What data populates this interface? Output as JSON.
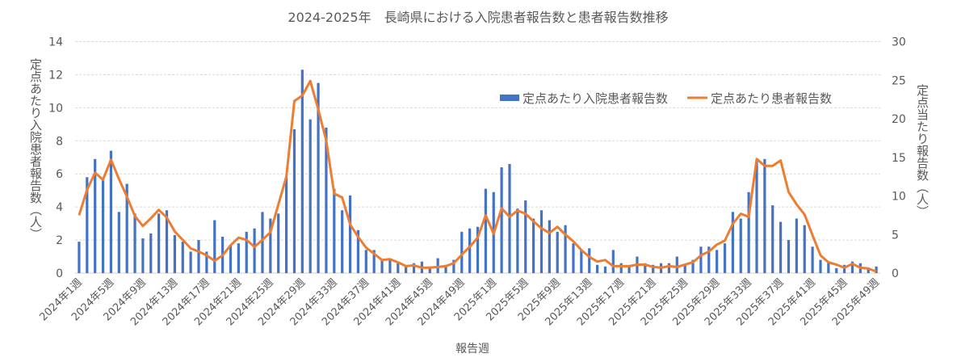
{
  "chart_data": {
    "type": "bar+line",
    "title": "2024-2025年　長崎県における入院患者報告数と患者報告数推移",
    "xlabel": "報告週",
    "ylabel_left": "定点あたり入院患者報告数（人）",
    "ylabel_right": "定点当たり報告数（人）",
    "ylim_left": [
      0,
      14
    ],
    "yticks_left": [
      0,
      2,
      4,
      6,
      8,
      10,
      12,
      14
    ],
    "ylim_right": [
      0,
      30
    ],
    "yticks_right": [
      0,
      5,
      10,
      15,
      20,
      25,
      30
    ],
    "grid": true,
    "legend_position": "top-right",
    "categories": [
      "2024年1週",
      "2024年2週",
      "2024年3週",
      "2024年4週",
      "2024年5週",
      "2024年6週",
      "2024年7週",
      "2024年8週",
      "2024年9週",
      "2024年10週",
      "2024年11週",
      "2024年12週",
      "2024年13週",
      "2024年14週",
      "2024年15週",
      "2024年16週",
      "2024年17週",
      "2024年18週",
      "2024年19週",
      "2024年20週",
      "2024年21週",
      "2024年22週",
      "2024年23週",
      "2024年24週",
      "2024年25週",
      "2024年26週",
      "2024年27週",
      "2024年28週",
      "2024年29週",
      "2024年30週",
      "2024年31週",
      "2024年32週",
      "2024年33週",
      "2024年34週",
      "2024年35週",
      "2024年36週",
      "2024年37週",
      "2024年38週",
      "2024年39週",
      "2024年40週",
      "2024年41週",
      "2024年42週",
      "2024年43週",
      "2024年44週",
      "2024年45週",
      "2024年46週",
      "2024年47週",
      "2024年48週",
      "2024年49週",
      "2024年50週",
      "2024年51週",
      "2024年52週",
      "2025年1週",
      "2025年2週",
      "2025年3週",
      "2025年4週",
      "2025年5週",
      "2025年6週",
      "2025年7週",
      "2025年8週",
      "2025年9週",
      "2025年10週",
      "2025年11週",
      "2025年12週",
      "2025年13週",
      "2025年14週",
      "2025年15週",
      "2025年16週",
      "2025年17週",
      "2025年18週",
      "2025年19週",
      "2025年20週",
      "2025年21週",
      "2025年22週",
      "2025年23週",
      "2025年24週",
      "2025年25週",
      "2025年26週",
      "2025年27週",
      "2025年28週",
      "2025年29週",
      "2025年30週",
      "2025年31週",
      "2025年32週",
      "2025年33週",
      "2025年34週",
      "2025年35週",
      "2025年36週",
      "2025年37週",
      "2025年38週",
      "2025年39週",
      "2025年40週",
      "2025年41週",
      "2025年42週",
      "2025年43週",
      "2025年44週",
      "2025年45週",
      "2025年46週",
      "2025年47週",
      "2025年48週",
      "2025年49週"
    ],
    "tick_label_every": 4,
    "series": [
      {
        "name": "定点あたり入院患者報告数",
        "type": "bar",
        "axis": "left",
        "color": "#4472C4",
        "values": [
          1.9,
          5.8,
          6.9,
          5.6,
          7.4,
          3.7,
          5.4,
          3.6,
          2.1,
          2.4,
          3.6,
          3.8,
          2.3,
          1.9,
          1.3,
          2.0,
          1.3,
          3.2,
          2.2,
          1.7,
          1.8,
          2.5,
          2.7,
          3.7,
          3.3,
          3.6,
          5.8,
          8.7,
          12.3,
          9.3,
          11.5,
          8.8,
          5.1,
          3.8,
          4.7,
          2.6,
          1.4,
          1.4,
          0.8,
          0.8,
          0.6,
          0.4,
          0.6,
          0.7,
          0.4,
          0.9,
          0.5,
          0.8,
          2.5,
          2.7,
          2.8,
          5.1,
          4.9,
          6.4,
          6.6,
          3.9,
          4.4,
          3.3,
          3.8,
          3.2,
          2.5,
          2.9,
          1.8,
          1.4,
          1.5,
          0.5,
          0.4,
          1.4,
          0.6,
          0.4,
          1.0,
          0.6,
          0.5,
          0.6,
          0.6,
          1.0,
          0.5,
          0.8,
          1.6,
          1.6,
          1.4,
          1.8,
          3.7,
          3.3,
          4.9,
          6.8,
          6.9,
          4.1,
          3.1,
          2.0,
          3.3,
          2.9,
          1.6,
          0.8,
          0.7,
          0.3,
          0.5,
          0.7,
          0.6,
          0.3,
          0.4
        ]
      },
      {
        "name": "定点あたり患者報告数",
        "type": "line",
        "axis": "right",
        "color": "#ED7D31",
        "values": [
          7.5,
          10.8,
          13.0,
          12.1,
          14.7,
          12.2,
          9.9,
          7.4,
          6.1,
          7.1,
          8.2,
          7.2,
          5.4,
          4.3,
          3.2,
          2.8,
          2.3,
          1.6,
          2.3,
          3.6,
          4.6,
          4.3,
          3.4,
          4.3,
          5.3,
          8.9,
          12.5,
          22.3,
          23.0,
          24.9,
          21.2,
          17.2,
          10.3,
          9.8,
          6.3,
          4.7,
          3.3,
          2.5,
          1.7,
          1.8,
          1.4,
          0.9,
          1.0,
          0.7,
          0.7,
          0.8,
          0.9,
          1.3,
          2.4,
          3.4,
          4.6,
          7.5,
          5.1,
          8.4,
          7.3,
          8.1,
          7.7,
          6.7,
          5.8,
          5.2,
          6.0,
          5.0,
          4.1,
          3.0,
          2.1,
          1.5,
          1.7,
          0.9,
          0.9,
          0.9,
          1.1,
          1.1,
          0.8,
          0.7,
          0.9,
          0.8,
          1.1,
          1.4,
          2.3,
          2.8,
          3.7,
          4.2,
          6.4,
          7.7,
          7.3,
          14.8,
          13.9,
          13.9,
          14.6,
          10.5,
          8.9,
          7.6,
          4.9,
          2.3,
          1.4,
          1.1,
          0.7,
          1.2,
          0.7,
          0.6,
          0.2
        ]
      }
    ]
  }
}
